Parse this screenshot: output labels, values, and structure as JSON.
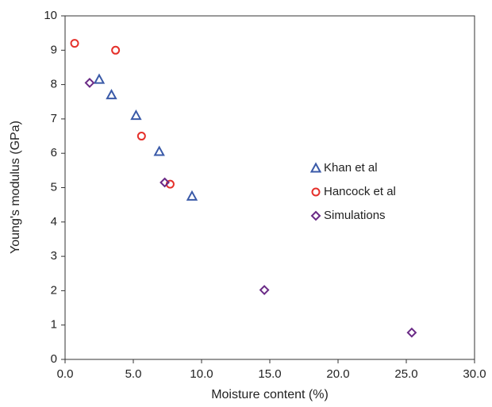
{
  "chart_data": {
    "type": "scatter",
    "xlabel": "Moisture content (%)",
    "ylabel": "Young's modulus (GPa)",
    "xlim": [
      0,
      30
    ],
    "xticks": [
      {
        "value": 0,
        "label": "0.0"
      },
      {
        "value": 5,
        "label": "5.0"
      },
      {
        "value": 10,
        "label": "10.0"
      },
      {
        "value": 15,
        "label": "15.0"
      },
      {
        "value": 20,
        "label": "20.0"
      },
      {
        "value": 25,
        "label": "25.0"
      },
      {
        "value": 30,
        "label": "30.0"
      }
    ],
    "ylim": [
      0,
      10
    ],
    "yticks": [
      0,
      1,
      2,
      3,
      4,
      5,
      6,
      7,
      8,
      9,
      10
    ],
    "series": [
      {
        "name": "Khan et al",
        "color": "#3a5aa8",
        "marker": "triangle",
        "x": [
          2.5,
          3.4,
          5.2,
          6.9,
          9.3
        ],
        "values": [
          8.15,
          7.7,
          7.1,
          6.05,
          4.75
        ]
      },
      {
        "name": "Hancock et al",
        "color": "#e5302a",
        "marker": "circle",
        "x": [
          0.7,
          3.7,
          5.6,
          7.7
        ],
        "values": [
          9.2,
          9.0,
          6.5,
          5.1
        ]
      },
      {
        "name": "Simulations",
        "color": "#6a2a86",
        "marker": "diamond",
        "x": [
          1.8,
          7.3,
          14.6,
          25.4
        ],
        "values": [
          8.05,
          5.15,
          2.02,
          0.78
        ]
      }
    ]
  }
}
